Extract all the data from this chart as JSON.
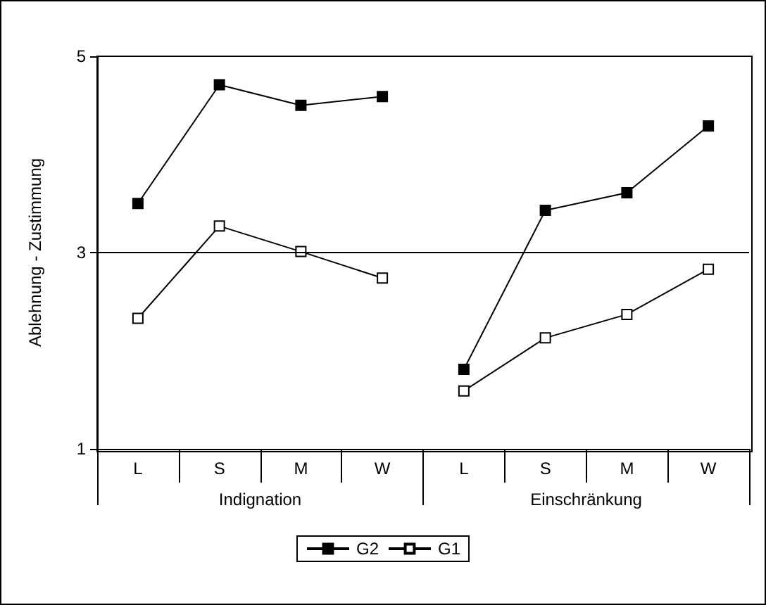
{
  "chart_data": {
    "type": "line",
    "ylabel": "Ablehnung - Zustimmung",
    "categories": [
      "L",
      "S",
      "M",
      "W",
      "L",
      "S",
      "M",
      "W"
    ],
    "annotations": [
      "Indignation",
      "Einschränkung"
    ],
    "series": [
      {
        "name": "G2",
        "color": "#000000",
        "values": [
          3.5,
          4.71,
          4.5,
          4.59,
          1.81,
          3.43,
          3.61,
          4.29
        ]
      },
      {
        "name": "G1",
        "color": "#000000",
        "values": [
          2.33,
          3.27,
          3.01,
          2.74,
          1.59,
          2.13,
          2.37,
          2.83
        ]
      }
    ],
    "ylim": [
      1,
      5
    ],
    "yticks": [
      1,
      3,
      5
    ],
    "grid": false,
    "legend": "bottom",
    "marker": "square",
    "line_style": "solid",
    "ref_lines": [
      {
        "axis": "y",
        "value": 3,
        "color": "#000000"
      }
    ]
  }
}
